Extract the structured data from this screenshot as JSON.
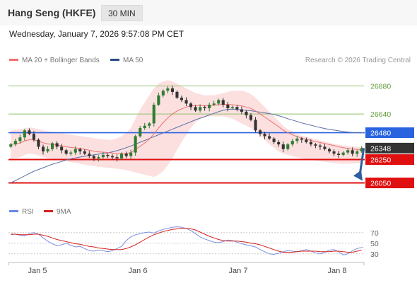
{
  "header": {
    "title": "Hang Seng (HKFE)",
    "interval": "30 MIN",
    "datetime": "Wednesday, January 7, 2026 9:57:08 PM CET"
  },
  "legend": {
    "ma20_label": "MA 20 + Bollinger Bands",
    "ma50_label": "MA 50",
    "credit": "Research © 2026 Trading Central",
    "rsi_label": "RSI",
    "ma9_label": "9MA"
  },
  "colors": {
    "resistance": "#2a63e0",
    "support": "#e01010",
    "last_price_bg": "#333333",
    "green_level": "#8dc26b",
    "ma20": "#f07070",
    "band_fill": "#fbd3d3",
    "ma50": "#5a6fa8",
    "candle_up": "#2e7d32",
    "candle_down": "#333333",
    "rsi": "#7b8fe0",
    "ma9": "#d62020",
    "arrow": "#2f5fa0"
  },
  "chart_data": [
    {
      "type": "candlestick",
      "ylim": [
        25920,
        26950
      ],
      "x_tick_labels": [
        "Jan 5",
        "Jan 6",
        "Jan 7",
        "Jan 8"
      ],
      "price_labels": [
        {
          "value": 26880,
          "label": "26880",
          "kind": "green"
        },
        {
          "value": 26640,
          "label": "26640",
          "kind": "green"
        },
        {
          "value": 26480,
          "label": "26480",
          "kind": "resistance"
        },
        {
          "value": 26348,
          "label": "26348",
          "kind": "last"
        },
        {
          "value": 26250,
          "label": "26250",
          "kind": "support"
        },
        {
          "value": 26050,
          "label": "26050",
          "kind": "support"
        }
      ],
      "close": [
        26380,
        26410,
        26440,
        26500,
        26470,
        26420,
        26360,
        26320,
        26340,
        26390,
        26360,
        26330,
        26300,
        26310,
        26340,
        26320,
        26300,
        26280,
        26260,
        26270,
        26290,
        26280,
        26270,
        26260,
        26300,
        26280,
        26310,
        26450,
        26520,
        26540,
        26560,
        26720,
        26800,
        26840,
        26860,
        26830,
        26780,
        26760,
        26730,
        26700,
        26670,
        26700,
        26690,
        26720,
        26730,
        26760,
        26720,
        26690,
        26700,
        26680,
        26660,
        26630,
        26590,
        26500,
        26470,
        26450,
        26430,
        26400,
        26380,
        26340,
        26380,
        26410,
        26430,
        26420,
        26400,
        26380,
        26370,
        26360,
        26340,
        26320,
        26300,
        26290,
        26310,
        26330,
        26300,
        26320,
        26348
      ],
      "ma20": [
        26380,
        26384,
        26392,
        26410,
        26420,
        26418,
        26408,
        26394,
        26384,
        26380,
        26374,
        26368,
        26360,
        26354,
        26350,
        26344,
        26338,
        26330,
        26322,
        26316,
        26314,
        26310,
        26306,
        26302,
        26302,
        26302,
        26310,
        26336,
        26364,
        26392,
        26424,
        26470,
        26520,
        26566,
        26606,
        26640,
        26666,
        26684,
        26700,
        26710,
        26712,
        26712,
        26712,
        26714,
        26716,
        26720,
        26722,
        26722,
        26720,
        26716,
        26710,
        26700,
        26688,
        26666,
        26640,
        26614,
        26586,
        26560,
        26532,
        26502,
        26480,
        26462,
        26446,
        26434,
        26424,
        26414,
        26404,
        26396,
        26388,
        26378,
        26370,
        26360,
        26352,
        26346,
        26340,
        26336,
        26332
      ],
      "bb_upper": [
        26500,
        26505,
        26510,
        26520,
        26525,
        26520,
        26510,
        26500,
        26492,
        26488,
        26482,
        26476,
        26470,
        26464,
        26458,
        26452,
        26446,
        26440,
        26434,
        26428,
        26424,
        26420,
        26420,
        26430,
        26450,
        26480,
        26520,
        26600,
        26680,
        26740,
        26800,
        26860,
        26900,
        26920,
        26930,
        26920,
        26900,
        26880,
        26860,
        26840,
        26820,
        26810,
        26800,
        26800,
        26800,
        26810,
        26820,
        26830,
        26840,
        26840,
        26840,
        26830,
        26810,
        26780,
        26740,
        26700,
        26660,
        26620,
        26580,
        26540,
        26510,
        26490,
        26470,
        26455,
        26445,
        26435,
        26425,
        26415,
        26405,
        26395,
        26385,
        26378,
        26372,
        26368,
        26364,
        26360,
        26356
      ],
      "bb_lower": [
        26260,
        26263,
        26270,
        26290,
        26300,
        26296,
        26286,
        26272,
        26262,
        26256,
        26250,
        26244,
        26236,
        26228,
        26220,
        26214,
        26206,
        26200,
        26194,
        26188,
        26184,
        26180,
        26176,
        26172,
        26166,
        26160,
        26150,
        26140,
        26130,
        26120,
        26110,
        26100,
        26120,
        26150,
        26200,
        26260,
        26330,
        26400,
        26460,
        26520,
        26570,
        26600,
        26610,
        26620,
        26620,
        26620,
        26620,
        26610,
        26600,
        26580,
        26560,
        26540,
        26520,
        26490,
        26460,
        26420,
        26380,
        26350,
        26320,
        26300,
        26290,
        26280,
        26270,
        26262,
        26254,
        26248,
        26242,
        26236,
        26230,
        26224,
        26220,
        26216,
        26214,
        26214,
        26216,
        26218,
        26220
      ],
      "ma50": [
        26050,
        26070,
        26090,
        26110,
        26130,
        26150,
        26165,
        26180,
        26195,
        26210,
        26222,
        26234,
        26246,
        26256,
        26264,
        26272,
        26278,
        26284,
        26290,
        26296,
        26302,
        26308,
        26316,
        26326,
        26338,
        26352,
        26366,
        26382,
        26398,
        26414,
        26430,
        26446,
        26462,
        26478,
        26494,
        26510,
        26526,
        26542,
        26558,
        26574,
        26590,
        26604,
        26618,
        26632,
        26646,
        26660,
        26672,
        26680,
        26682,
        26680,
        26676,
        26672,
        26668,
        26662,
        26656,
        26650,
        26644,
        26636,
        26626,
        26614,
        26600,
        26588,
        26576,
        26564,
        26554,
        26544,
        26534,
        26524,
        26516,
        26508,
        26502,
        26496,
        26490,
        26486,
        26482,
        26480,
        26478
      ]
    },
    {
      "type": "line",
      "ylim": [
        15,
        95
      ],
      "y_tick_labels": [
        "70",
        "50",
        "30"
      ],
      "y_tick_values": [
        70,
        50,
        30
      ],
      "series": [
        {
          "name": "RSI",
          "values": [
            66,
            67,
            65,
            64,
            68,
            70,
            67,
            60,
            54,
            49,
            45,
            47,
            50,
            46,
            43,
            44,
            40,
            36,
            35,
            37,
            36,
            34,
            36,
            40,
            44,
            55,
            62,
            66,
            68,
            70,
            71,
            69,
            73,
            76,
            78,
            80,
            81,
            80,
            78,
            74,
            68,
            62,
            58,
            55,
            52,
            51,
            53,
            56,
            55,
            52,
            49,
            47,
            45,
            43,
            38,
            34,
            30,
            29,
            31,
            34,
            36,
            35,
            34,
            36,
            38,
            35,
            32,
            30,
            33,
            37,
            38,
            34,
            28,
            30,
            36,
            40,
            42
          ]
        },
        {
          "name": "9MA",
          "values": [
            67,
            67,
            66,
            66,
            66,
            67,
            67,
            65,
            63,
            60,
            57,
            55,
            53,
            51,
            49,
            48,
            46,
            44,
            43,
            41,
            40,
            39,
            38,
            38,
            38,
            40,
            43,
            47,
            52,
            57,
            62,
            66,
            69,
            72,
            74,
            76,
            77,
            78,
            78,
            77,
            75,
            71,
            67,
            63,
            60,
            57,
            55,
            54,
            54,
            54,
            53,
            52,
            50,
            49,
            47,
            44,
            41,
            38,
            35,
            33,
            33,
            33,
            34,
            35,
            35,
            35,
            35,
            34,
            34,
            34,
            35,
            35,
            34,
            33,
            33,
            35,
            37
          ]
        }
      ]
    }
  ]
}
